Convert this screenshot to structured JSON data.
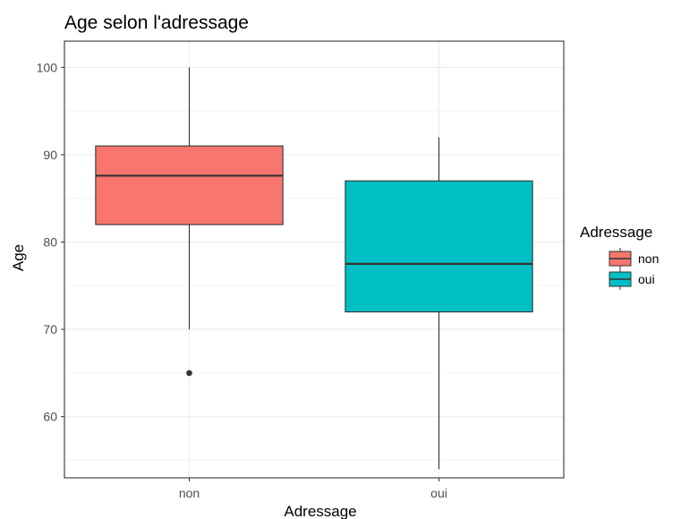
{
  "chart_data": {
    "type": "boxplot",
    "title": "Age selon l'adressage",
    "xlabel": "Adressage",
    "ylabel": "Age",
    "ylim": [
      53,
      103
    ],
    "yticks": [
      60,
      70,
      80,
      90,
      100
    ],
    "grid": true,
    "categories": [
      "non",
      "oui"
    ],
    "boxes": [
      {
        "category": "non",
        "whisker_low": 70,
        "q1": 82,
        "median": 87.6,
        "q3": 91,
        "whisker_high": 100,
        "outliers": [
          65
        ],
        "color": "#F8766D"
      },
      {
        "category": "oui",
        "whisker_low": 54,
        "q1": 72,
        "median": 77.5,
        "q3": 87,
        "whisker_high": 92,
        "outliers": [],
        "color": "#00BFC4"
      }
    ],
    "legend": {
      "title": "Adressage",
      "position": "right",
      "entries": [
        {
          "label": "non",
          "color": "#F8766D"
        },
        {
          "label": "oui",
          "color": "#00BFC4"
        }
      ]
    }
  }
}
